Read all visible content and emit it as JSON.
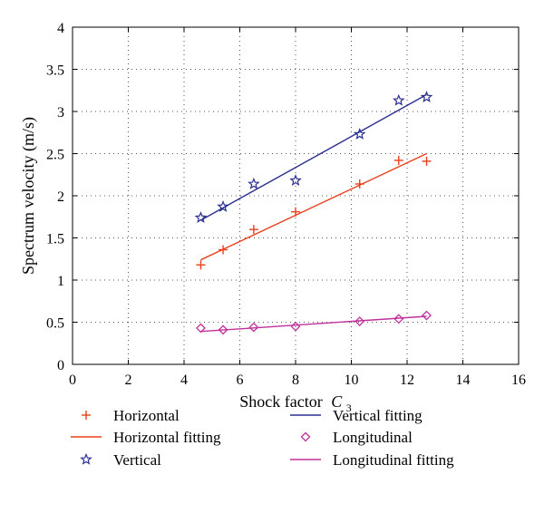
{
  "chart_data": {
    "type": "scatter",
    "title": "",
    "xlabel": "Shock factor",
    "xlabel_symbol": "C",
    "xlabel_subscript": "3",
    "ylabel": "Spectrum velocity (m/s)",
    "xlim": [
      0,
      16
    ],
    "ylim": [
      0,
      4
    ],
    "x_ticks": [
      0,
      2,
      4,
      6,
      8,
      10,
      12,
      14,
      16
    ],
    "x_tick_labels": [
      "0",
      "2",
      "4",
      "6",
      "8",
      "10",
      "12",
      "14",
      "16"
    ],
    "y_ticks": [
      0,
      0.5,
      1,
      1.5,
      2,
      2.5,
      3,
      3.5,
      4
    ],
    "y_tick_labels": [
      "0",
      "0.5",
      "1",
      "1.5",
      "2",
      "2.5",
      "3",
      "3.5",
      "4"
    ],
    "grid": "dotted",
    "legend_position": "bottom",
    "x": [
      4.6,
      5.4,
      6.5,
      8.0,
      10.3,
      11.7,
      12.7
    ],
    "series": [
      {
        "name": "Horizontal",
        "kind": "points",
        "marker": "plus",
        "color": "#e8401c",
        "values": [
          1.18,
          1.36,
          1.6,
          1.81,
          2.14,
          2.42,
          2.41
        ]
      },
      {
        "name": "Horizontal fitting",
        "kind": "line",
        "color": "#e8401c",
        "x": [
          4.6,
          12.7
        ],
        "values": [
          1.24,
          2.5
        ]
      },
      {
        "name": "Vertical",
        "kind": "points",
        "marker": "star",
        "color": "#2b2f8f",
        "values": [
          1.74,
          1.87,
          2.14,
          2.18,
          2.73,
          3.13,
          3.17
        ]
      },
      {
        "name": "Vertical fitting",
        "kind": "line",
        "color": "#2b2f8f",
        "x": [
          4.6,
          12.7
        ],
        "values": [
          1.71,
          3.2
        ]
      },
      {
        "name": "Longitudinal",
        "kind": "points",
        "marker": "diamond",
        "color": "#c0309a",
        "values": [
          0.43,
          0.41,
          0.44,
          0.45,
          0.51,
          0.54,
          0.58
        ]
      },
      {
        "name": "Longitudinal fitting",
        "kind": "line",
        "color": "#c0309a",
        "x": [
          4.6,
          12.7
        ],
        "values": [
          0.39,
          0.57
        ]
      }
    ],
    "legend_order": [
      [
        "Horizontal",
        "Vertical fitting"
      ],
      [
        "Horizontal fitting",
        "Longitudinal"
      ],
      [
        "Vertical",
        "Longitudinal fitting"
      ]
    ]
  }
}
